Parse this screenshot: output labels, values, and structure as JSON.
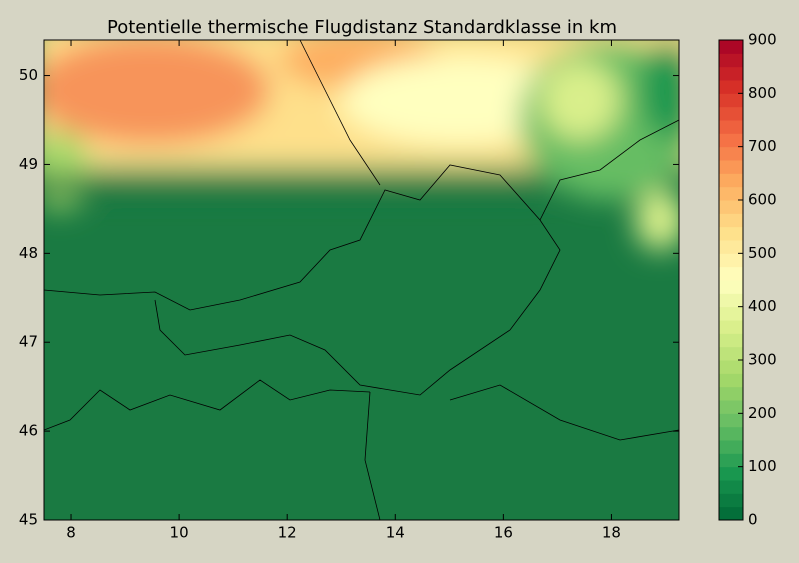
{
  "chart_data": {
    "type": "contour",
    "title": "Potentielle thermische Flugdistanz Standardklasse in km",
    "xlim": [
      7.5,
      19.25
    ],
    "xticks": [
      8,
      10,
      12,
      14,
      16,
      18
    ],
    "ylim": [
      45,
      50.4
    ],
    "yticks": [
      45,
      46,
      47,
      48,
      49,
      50
    ],
    "colorbar": {
      "lim": [
        0,
        900
      ],
      "ticks": [
        0,
        100,
        200,
        300,
        400,
        500,
        600,
        700,
        800,
        900
      ],
      "levels": 36,
      "colors": [
        "#006837",
        "#1a9850",
        "#66bd63",
        "#a6d96a",
        "#d9ef8b",
        "#ffffbf",
        "#fee08b",
        "#fdae61",
        "#f46d43",
        "#d73027",
        "#a50026"
      ]
    }
  }
}
